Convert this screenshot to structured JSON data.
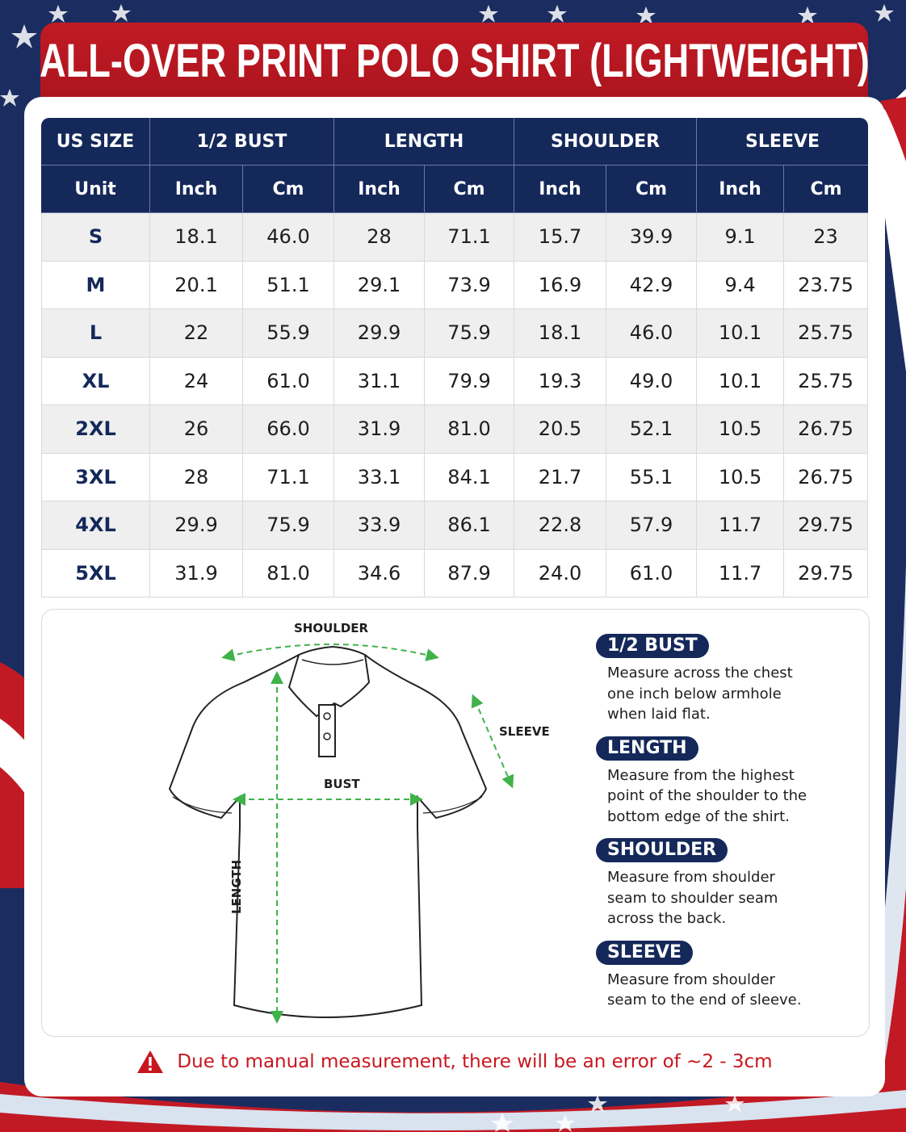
{
  "title": "ALL-OVER PRINT POLO SHIRT (LIGHTWEIGHT)",
  "colors": {
    "navy": "#14285a",
    "red": "#c11a24",
    "measure_line": "#3fb24a"
  },
  "table": {
    "group_headers": [
      "US SIZE",
      "1/2 BUST",
      "LENGTH",
      "SHOULDER",
      "SLEEVE"
    ],
    "unit_header": "Unit",
    "unit_labels": [
      "Inch",
      "Cm",
      "Inch",
      "Cm",
      "Inch",
      "Cm",
      "Inch",
      "Cm"
    ],
    "rows": [
      [
        "S",
        "18.1",
        "46.0",
        "28",
        "71.1",
        "15.7",
        "39.9",
        "9.1",
        "23"
      ],
      [
        "M",
        "20.1",
        "51.1",
        "29.1",
        "73.9",
        "16.9",
        "42.9",
        "9.4",
        "23.75"
      ],
      [
        "L",
        "22",
        "55.9",
        "29.9",
        "75.9",
        "18.1",
        "46.0",
        "10.1",
        "25.75"
      ],
      [
        "XL",
        "24",
        "61.0",
        "31.1",
        "79.9",
        "19.3",
        "49.0",
        "10.1",
        "25.75"
      ],
      [
        "2XL",
        "26",
        "66.0",
        "31.9",
        "81.0",
        "20.5",
        "52.1",
        "10.5",
        "26.75"
      ],
      [
        "3XL",
        "28",
        "71.1",
        "33.1",
        "84.1",
        "21.7",
        "55.1",
        "10.5",
        "26.75"
      ],
      [
        "4XL",
        "29.9",
        "75.9",
        "33.9",
        "86.1",
        "22.8",
        "57.9",
        "11.7",
        "29.75"
      ],
      [
        "5XL",
        "31.9",
        "81.0",
        "34.6",
        "87.9",
        "24.0",
        "61.0",
        "11.7",
        "29.75"
      ]
    ]
  },
  "diagram": {
    "labels": {
      "shoulder": "SHOULDER",
      "sleeve": "SLEEVE",
      "bust": "BUST",
      "length": "LENGTH"
    },
    "definitions": [
      {
        "title": "1/2 BUST",
        "lines": [
          "Measure across the chest",
          "one inch below armhole",
          "when laid flat."
        ]
      },
      {
        "title": "LENGTH",
        "lines": [
          "Measure from the highest",
          "point of the shoulder to the",
          "bottom edge of the shirt."
        ]
      },
      {
        "title": "SHOULDER",
        "lines": [
          "Measure from shoulder",
          "seam to shoulder seam",
          "across the back."
        ]
      },
      {
        "title": "SLEEVE",
        "lines": [
          "Measure from shoulder",
          "seam to the end of sleeve."
        ]
      }
    ]
  },
  "warning": {
    "icon": "warning-triangle-icon",
    "text": "Due to manual measurement, there will be an error of ~2 - 3cm"
  }
}
